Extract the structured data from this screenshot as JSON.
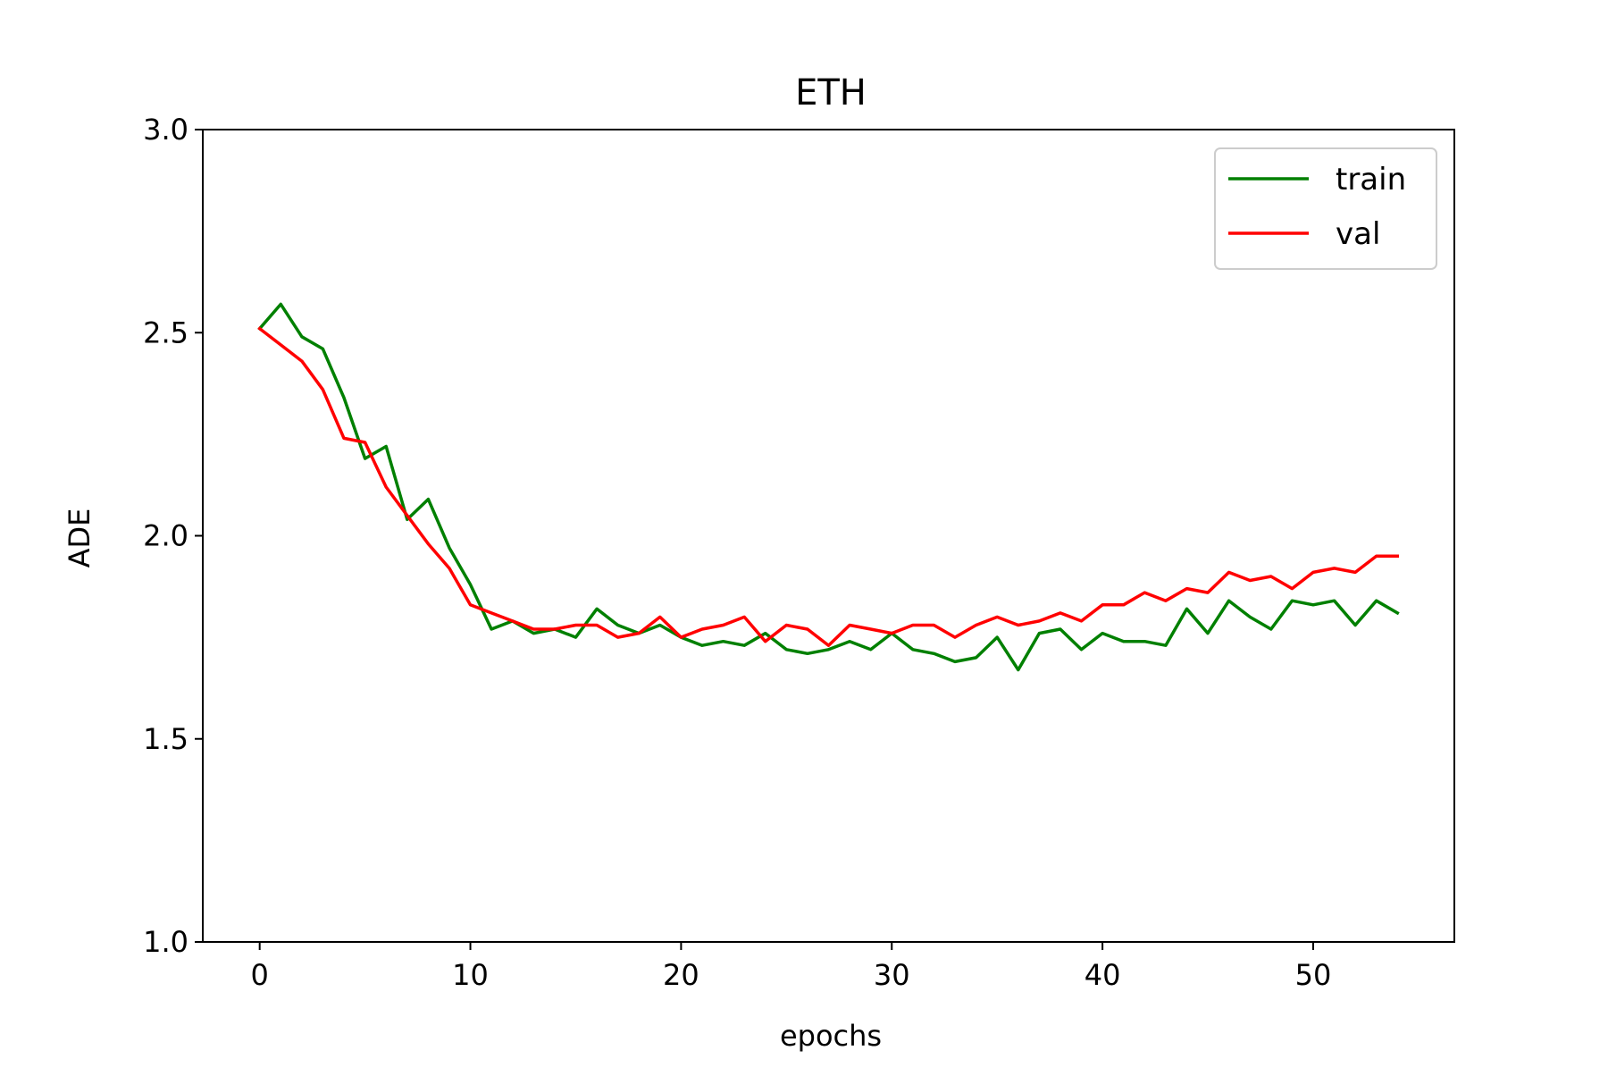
{
  "chart_data": {
    "type": "line",
    "title": "ETH",
    "xlabel": "epochs",
    "ylabel": "ADE",
    "xlim": [
      -2.7,
      56.7
    ],
    "ylim": [
      1.0,
      3.0
    ],
    "xticks": [
      0,
      10,
      20,
      30,
      40,
      50
    ],
    "yticks": [
      1.0,
      1.5,
      2.0,
      2.5,
      3.0
    ],
    "xtick_labels": [
      "0",
      "10",
      "20",
      "30",
      "40",
      "50"
    ],
    "ytick_labels": [
      "1.0",
      "1.5",
      "2.0",
      "2.5",
      "3.0"
    ],
    "grid": false,
    "legend_position": "top-right",
    "x": [
      0,
      1,
      2,
      3,
      4,
      5,
      6,
      7,
      8,
      9,
      10,
      11,
      12,
      13,
      14,
      15,
      16,
      17,
      18,
      19,
      20,
      21,
      22,
      23,
      24,
      25,
      26,
      27,
      28,
      29,
      30,
      31,
      32,
      33,
      34,
      35,
      36,
      37,
      38,
      39,
      40,
      41,
      42,
      43,
      44,
      45,
      46,
      47,
      48,
      49,
      50,
      51,
      52,
      53,
      54
    ],
    "series": [
      {
        "name": "train",
        "color": "#008000",
        "values": [
          2.51,
          2.57,
          2.49,
          2.46,
          2.34,
          2.19,
          2.22,
          2.04,
          2.09,
          1.97,
          1.88,
          1.77,
          1.79,
          1.76,
          1.77,
          1.75,
          1.82,
          1.78,
          1.76,
          1.78,
          1.75,
          1.73,
          1.74,
          1.73,
          1.76,
          1.72,
          1.71,
          1.72,
          1.74,
          1.72,
          1.76,
          1.72,
          1.71,
          1.69,
          1.7,
          1.75,
          1.67,
          1.76,
          1.77,
          1.72,
          1.76,
          1.74,
          1.74,
          1.73,
          1.82,
          1.76,
          1.84,
          1.8,
          1.77,
          1.84,
          1.83,
          1.84,
          1.78,
          1.84,
          1.81
        ]
      },
      {
        "name": "val",
        "color": "#ff0000",
        "values": [
          2.51,
          2.47,
          2.43,
          2.36,
          2.24,
          2.23,
          2.12,
          2.05,
          1.98,
          1.92,
          1.83,
          1.81,
          1.79,
          1.77,
          1.77,
          1.78,
          1.78,
          1.75,
          1.76,
          1.8,
          1.75,
          1.77,
          1.78,
          1.8,
          1.74,
          1.78,
          1.77,
          1.73,
          1.78,
          1.77,
          1.76,
          1.78,
          1.78,
          1.75,
          1.78,
          1.8,
          1.78,
          1.79,
          1.81,
          1.79,
          1.83,
          1.83,
          1.86,
          1.84,
          1.87,
          1.86,
          1.91,
          1.89,
          1.9,
          1.87,
          1.91,
          1.92,
          1.91,
          1.95,
          1.95
        ]
      }
    ]
  }
}
